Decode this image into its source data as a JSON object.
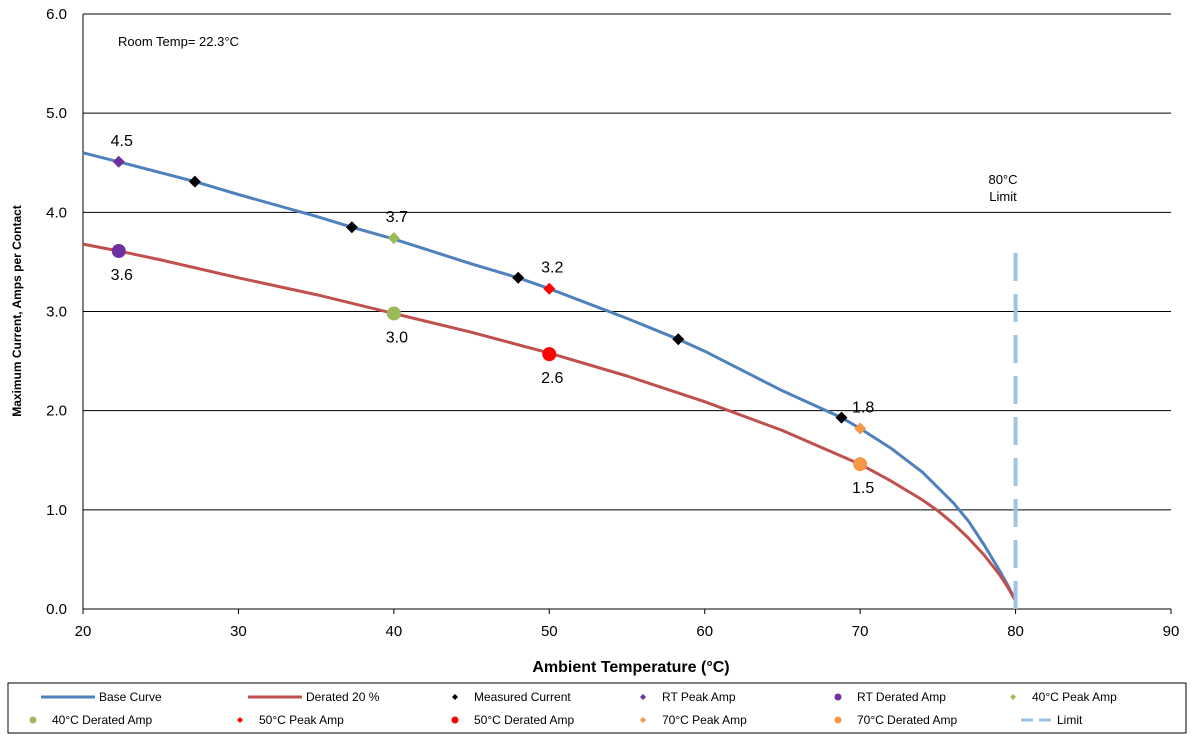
{
  "chart_data": {
    "type": "line",
    "title": "",
    "xlabel": "Ambient  Temperature (°C)",
    "ylabel": "Maximum Current, Amps per Contact",
    "xlim": [
      20,
      90
    ],
    "ylim": [
      0,
      6
    ],
    "x_ticks": [
      "20",
      "30",
      "40",
      "50",
      "60",
      "70",
      "80",
      "90"
    ],
    "y_ticks": [
      "0.0",
      "1.0",
      "2.0",
      "3.0",
      "4.0",
      "5.0",
      "6.0"
    ],
    "grid": "horizontal",
    "legend_position": "bottom",
    "annotations": [
      {
        "text": "Room Temp= 22.3°C"
      },
      {
        "text": "80°C"
      },
      {
        "text": "Limit"
      }
    ],
    "series": [
      {
        "name": "Base Curve",
        "kind": "line",
        "color": "#4F81BD",
        "x": [
          20,
          22.3,
          27.2,
          30,
          35,
          37.3,
          40,
          45,
          48,
          50,
          55,
          58.3,
          60,
          65,
          68.8,
          70,
          72,
          74,
          76,
          77,
          78,
          79,
          79.5,
          80
        ],
        "y": [
          4.6,
          4.51,
          4.31,
          4.18,
          3.96,
          3.85,
          3.73,
          3.48,
          3.34,
          3.23,
          2.93,
          2.72,
          2.6,
          2.2,
          1.93,
          1.82,
          1.62,
          1.38,
          1.07,
          0.88,
          0.64,
          0.38,
          0.24,
          0.08
        ]
      },
      {
        "name": "Derated 20 %",
        "kind": "line",
        "color": "#C0504D",
        "x": [
          20,
          22.3,
          25,
          30,
          35,
          40,
          45,
          50,
          55,
          60,
          65,
          70,
          72,
          74,
          75,
          76,
          77,
          78,
          79,
          79.5,
          80
        ],
        "y": [
          3.68,
          3.61,
          3.52,
          3.34,
          3.17,
          2.98,
          2.79,
          2.58,
          2.35,
          2.09,
          1.8,
          1.46,
          1.29,
          1.1,
          0.99,
          0.86,
          0.71,
          0.54,
          0.34,
          0.22,
          0.08
        ]
      },
      {
        "name": "Measured Current",
        "kind": "marker",
        "shape": "diamond",
        "color": "#000000",
        "x": [
          27.2,
          37.3,
          48,
          58.3,
          68.8
        ],
        "y": [
          4.31,
          3.85,
          3.34,
          2.72,
          1.93
        ]
      },
      {
        "name": "RT Peak Amp",
        "kind": "marker",
        "shape": "diamond",
        "color": "#7030A0",
        "x": [
          22.3
        ],
        "y": [
          4.51
        ],
        "labels": [
          "4.5"
        ]
      },
      {
        "name": "RT Derated Amp",
        "kind": "marker",
        "shape": "circle",
        "color": "#7030A0",
        "x": [
          22.3
        ],
        "y": [
          3.61
        ],
        "labels": [
          "3.6"
        ]
      },
      {
        "name": "40°C Peak Amp",
        "kind": "marker",
        "shape": "diamond",
        "color": "#9BBB59",
        "x": [
          40
        ],
        "y": [
          3.74
        ],
        "labels": [
          "3.7"
        ]
      },
      {
        "name": "40°C Derated Amp",
        "kind": "marker",
        "shape": "circle",
        "color": "#9BBB59",
        "x": [
          40
        ],
        "y": [
          2.98
        ],
        "labels": [
          "3.0"
        ]
      },
      {
        "name": "50°C Peak Amp",
        "kind": "marker",
        "shape": "diamond",
        "color": "#FF0000",
        "x": [
          50
        ],
        "y": [
          3.23
        ],
        "labels": [
          "3.2"
        ]
      },
      {
        "name": "50°C Derated Amp",
        "kind": "marker",
        "shape": "circle",
        "color": "#FF0000",
        "x": [
          50
        ],
        "y": [
          2.57
        ],
        "labels": [
          "2.6"
        ]
      },
      {
        "name": "70°C Peak Amp",
        "kind": "marker",
        "shape": "diamond",
        "color": "#F79646",
        "x": [
          70
        ],
        "y": [
          1.82
        ],
        "labels": [
          "1.8"
        ]
      },
      {
        "name": "70°C Derated Amp",
        "kind": "marker",
        "shape": "circle",
        "color": "#F79646",
        "x": [
          70
        ],
        "y": [
          1.46
        ],
        "labels": [
          "1.5"
        ]
      },
      {
        "name": "Limit",
        "kind": "dashed",
        "color": "#9DC3E6",
        "x": [
          80,
          80
        ],
        "y": [
          0,
          3.65
        ]
      }
    ]
  }
}
